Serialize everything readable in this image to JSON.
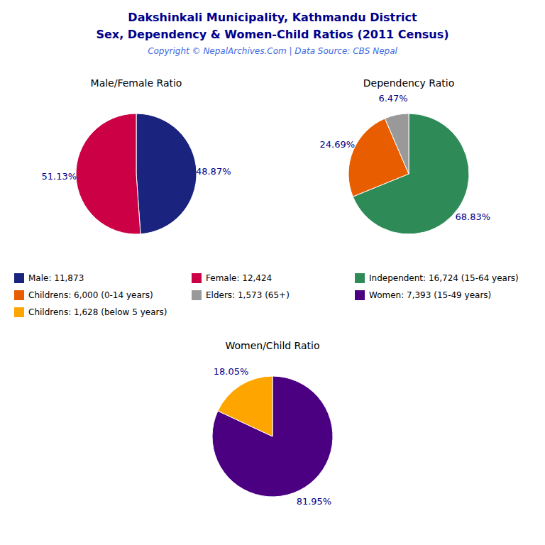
{
  "title": "Dakshinkali Municipality, Kathmandu District",
  "subtitle": "Sex, Dependency & Women-Child Ratios (2011 Census)",
  "annotations": [
    "Copyright © NepalArchives.Com | Data Source: CBS Nepal"
  ],
  "chart_data": [
    {
      "type": "pie",
      "title": "Male/Female Ratio",
      "categories": [
        "Male: 11,873",
        "Female: 12,424"
      ],
      "values": [
        48.87,
        51.13
      ],
      "value_labels": [
        "48.87%",
        "51.13%"
      ],
      "colors": [
        "#1a237e",
        "#cc0044"
      ],
      "data_labels": true,
      "legend": "center"
    },
    {
      "type": "pie",
      "title": "Dependency Ratio",
      "categories": [
        "Independent: 16,724 (15-64 years)",
        "Childrens: 6,000 (0-14 years)",
        "Elders: 1,573 (65+)"
      ],
      "values": [
        68.83,
        24.69,
        6.47
      ],
      "value_labels": [
        "68.83%",
        "24.69%",
        "6.47%"
      ],
      "colors": [
        "#2e8b57",
        "#e85d00",
        "#999999"
      ],
      "data_labels": true,
      "legend": "center"
    },
    {
      "type": "pie",
      "title": "Women/Child Ratio",
      "categories": [
        "Women: 7,393 (15-49 years)",
        "Childrens: 1,628 (below 5 years)"
      ],
      "values": [
        81.95,
        18.05
      ],
      "value_labels": [
        "81.95%",
        "18.05%"
      ],
      "colors": [
        "#4b0082",
        "#ffa500"
      ],
      "data_labels": true,
      "legend": "center"
    }
  ]
}
